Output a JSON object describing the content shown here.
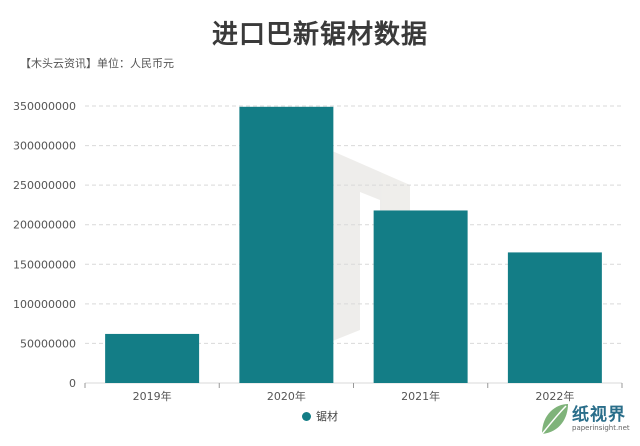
{
  "title": "进口巴新锯材数据",
  "subtitle": "【木头云资讯】单位：人民币元",
  "colors": {
    "bar": "#137d86",
    "grid": "#d9d9d9",
    "watermark": "#6a6a6a"
  },
  "legend": {
    "label": "锯材"
  },
  "logo": {
    "name": "纸视界",
    "url": "paperinsight.net",
    "icon": "leaf-icon"
  },
  "chart_data": {
    "type": "bar",
    "categories": [
      "2019年",
      "2020年",
      "2021年",
      "2022年"
    ],
    "series": [
      {
        "name": "锯材",
        "values": [
          62000000,
          349000000,
          218000000,
          165000000
        ]
      }
    ],
    "ylim": [
      0,
      350000000
    ],
    "yticks": [
      0,
      50000000,
      100000000,
      150000000,
      200000000,
      250000000,
      300000000,
      350000000
    ],
    "grid": true,
    "legend_position": "bottom"
  }
}
